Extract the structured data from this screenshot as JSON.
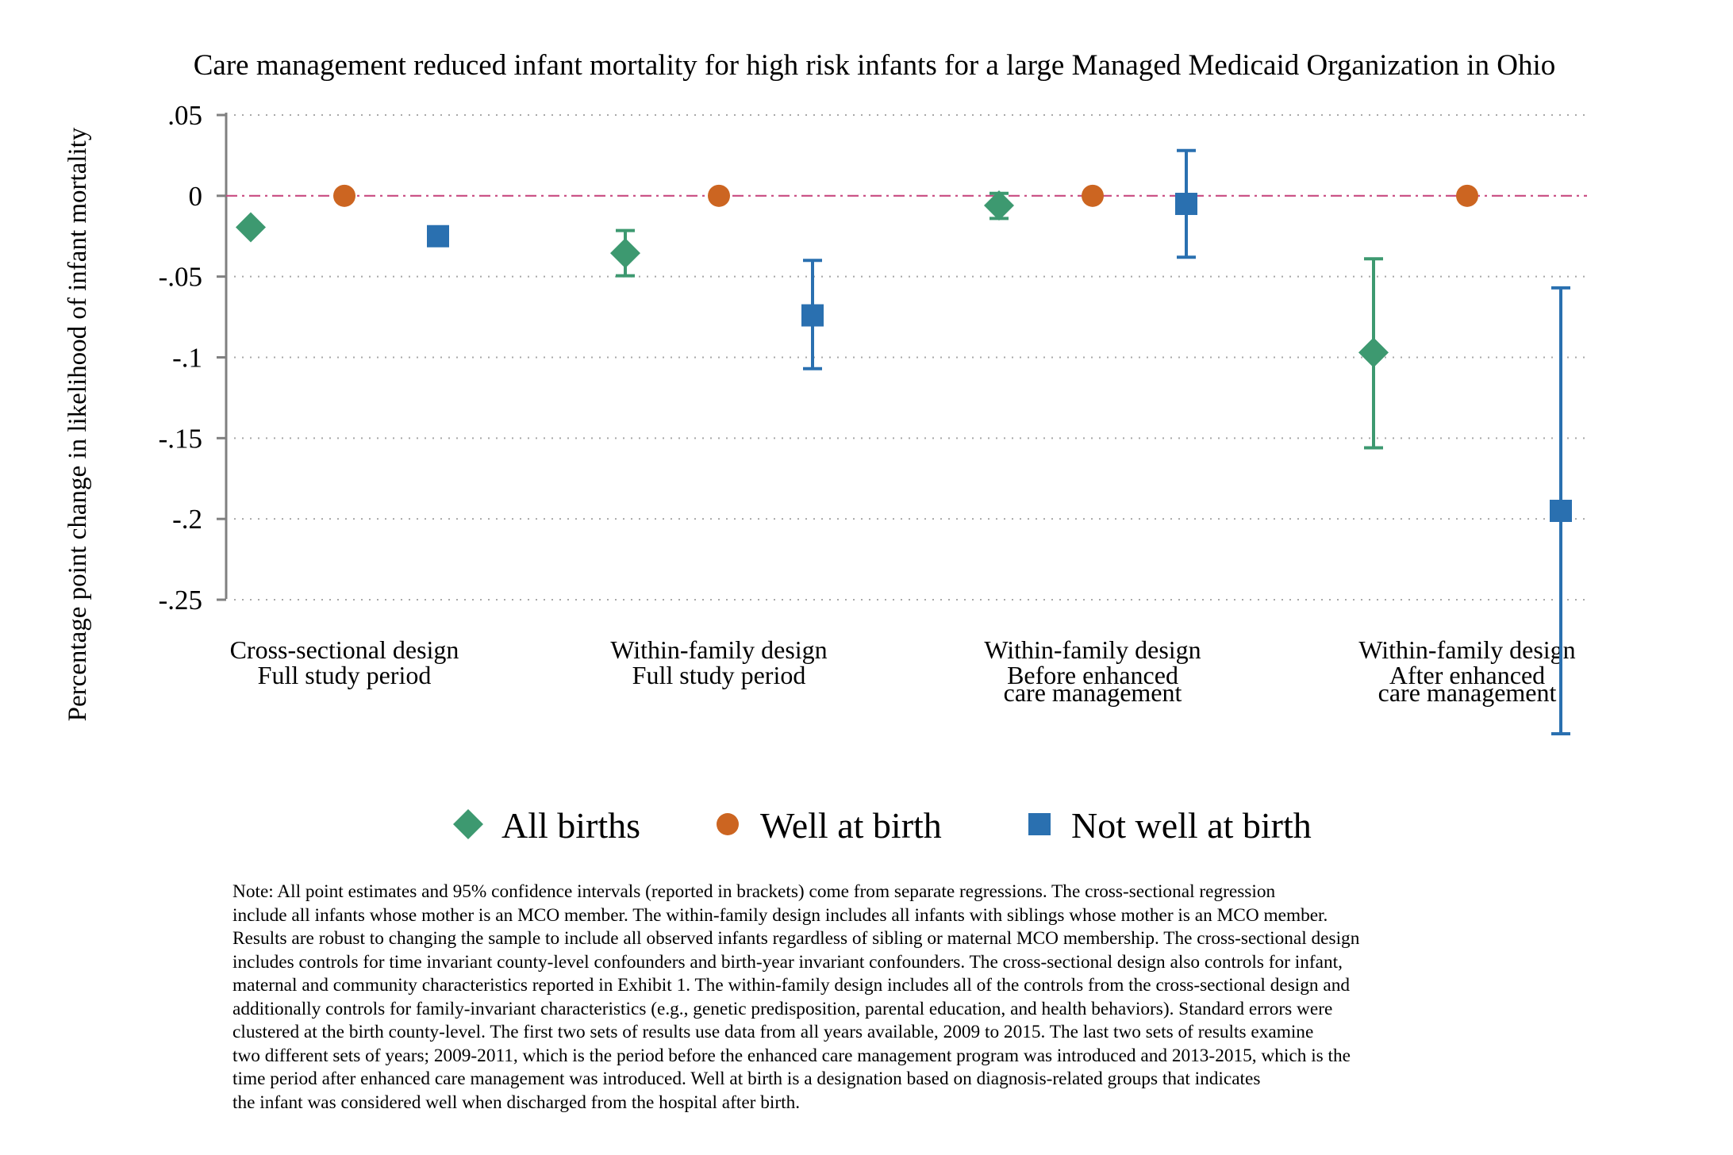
{
  "chart_data": {
    "type": "scatter",
    "title": "Care management reduced infant mortality for high risk infants for a large Managed Medicaid Organization in Ohio",
    "ylabel": "Percentage point change in likelihood of infant mortality",
    "xlabel": "",
    "ylim": [
      -0.25,
      0.05
    ],
    "yticks": [
      0.05,
      0,
      -0.05,
      -0.1,
      -0.15,
      -0.2,
      -0.25
    ],
    "ytick_labels": [
      ".05",
      "0",
      "-.05",
      "-.1",
      "-.15",
      "-.2",
      "-.25"
    ],
    "grid": "horizontal dotted",
    "reference_line": 0,
    "categories": [
      [
        "Cross-sectional design",
        "Full study period"
      ],
      [
        "Within-family design",
        "Full study period"
      ],
      [
        "Within-family design",
        "Before enhanced",
        "care management"
      ],
      [
        "Within-family design",
        "After enhanced",
        "care management"
      ]
    ],
    "series": [
      {
        "name": "All births",
        "marker": "diamond",
        "color": "#3d9970",
        "values": [
          -0.0195,
          -0.0355,
          -0.006,
          -0.097
        ],
        "ci_low": [
          null,
          -0.0495,
          -0.014,
          -0.156
        ],
        "ci_high": [
          null,
          -0.0215,
          0.0015,
          -0.039
        ]
      },
      {
        "name": "Well at birth",
        "marker": "circle",
        "color": "#cc6521",
        "values": [
          0,
          0,
          0,
          0
        ],
        "ci_low": [
          null,
          null,
          null,
          null
        ],
        "ci_high": [
          null,
          null,
          null,
          null
        ]
      },
      {
        "name": "Not well at birth",
        "marker": "square",
        "color": "#2a70b0",
        "values": [
          -0.025,
          -0.074,
          -0.005,
          -0.195
        ],
        "ci_low": [
          null,
          -0.107,
          -0.038,
          -0.333
        ],
        "ci_high": [
          null,
          -0.04,
          0.028,
          -0.057
        ]
      }
    ],
    "legend": "bottom-center"
  },
  "note": [
    "Note: All point estimates and 95% confidence intervals (reported in brackets) come from separate regressions. The cross-sectional regression",
    "include all infants whose mother is an MCO member. The within-family design includes all infants with siblings whose mother is an MCO member.",
    "Results are robust to changing the sample to include all observed infants regardless of sibling or maternal MCO membership. The cross-sectional design",
    "includes controls for time invariant county-level confounders and birth-year invariant confounders. The cross-sectional design also controls for infant,",
    "maternal and community characteristics reported in Exhibit 1. The within-family design includes all of the controls from the cross-sectional design and",
    "additionally controls for family-invariant characteristics (e.g., genetic predisposition, parental education, and health behaviors). Standard errors were",
    "clustered at the birth county-level. The first two sets of results use data from all years available, 2009 to 2015. The last two sets of results examine",
    "two different sets of years; 2009-2011, which is the period before the enhanced care management program was introduced and 2013-2015, which is the",
    "time period after enhanced care management was introduced. Well at birth is a designation based on diagnosis-related groups that indicates",
    "the infant was considered well when discharged from the hospital after birth."
  ]
}
